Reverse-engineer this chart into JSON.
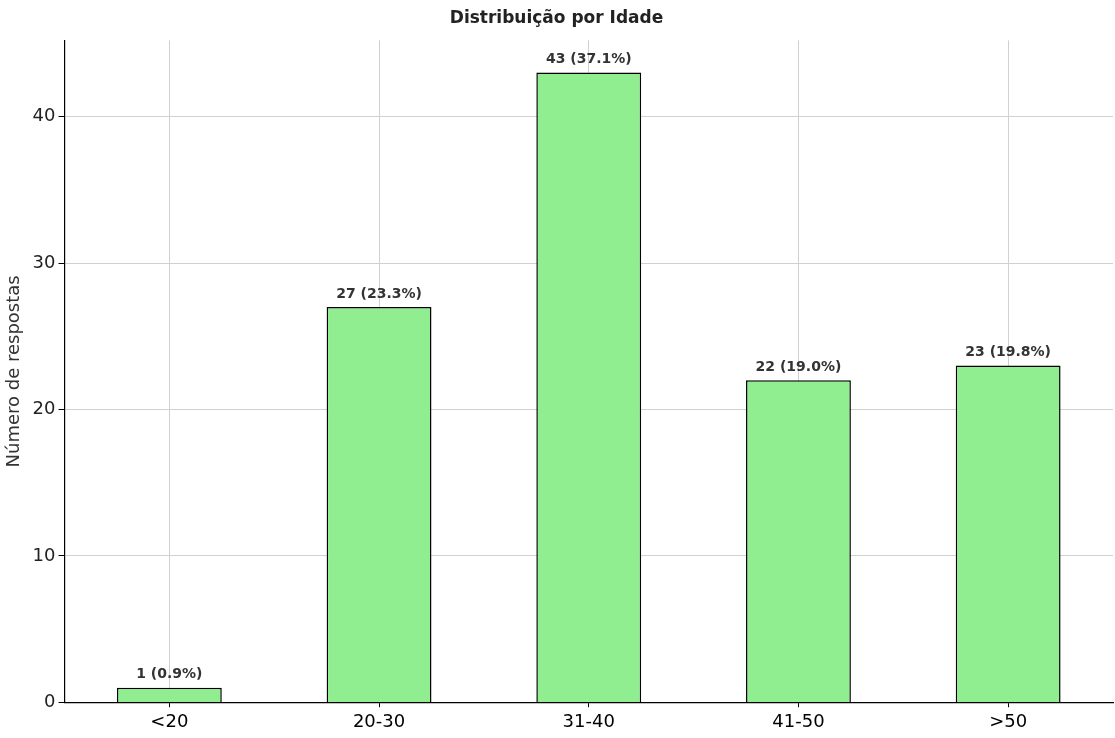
{
  "chart_data": {
    "type": "bar",
    "title": "Distribuição por Idade",
    "ylabel": "Número de respostas",
    "categories": [
      "<20",
      "20-30",
      "31-40",
      "41-50",
      ">50"
    ],
    "values": [
      1,
      27,
      43,
      22,
      23
    ],
    "value_labels": [
      "1 (0.9%)",
      "27 (23.3%)",
      "43 (37.1%)",
      "22 (19.0%)",
      "23 (19.8%)"
    ],
    "color": "#90ee90",
    "ylim": [
      0,
      45.2
    ],
    "yticks": [
      0,
      10,
      20,
      30,
      40
    ],
    "grid": true,
    "legend": false
  }
}
